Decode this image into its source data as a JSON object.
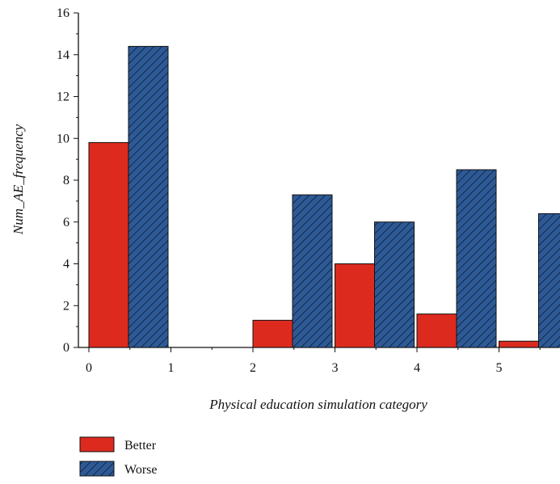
{
  "chart_data": {
    "type": "bar",
    "xlabel": "Physical education simulation category",
    "ylabel": "Num_AE_frequency",
    "ylim": [
      0,
      16
    ],
    "y_ticks": [
      "0",
      "2",
      "4",
      "6",
      "8",
      "10",
      "12",
      "14",
      "16"
    ],
    "x_ticks": [
      "0",
      "1",
      "2",
      "3",
      "4",
      "5"
    ],
    "grid": false,
    "legend_position": "bottom-left",
    "groups": [
      0,
      1,
      2,
      3,
      4,
      5
    ],
    "series": [
      {
        "name": "Better",
        "color": "#dc2a1f",
        "pattern": "solid",
        "values": [
          9.8,
          0,
          1.3,
          4.0,
          1.6,
          0.3
        ]
      },
      {
        "name": "Worse",
        "color": "#2d5a96",
        "pattern": "diagonal-hatch",
        "values": [
          14.4,
          0,
          7.3,
          6.0,
          8.5,
          6.4
        ]
      }
    ]
  }
}
